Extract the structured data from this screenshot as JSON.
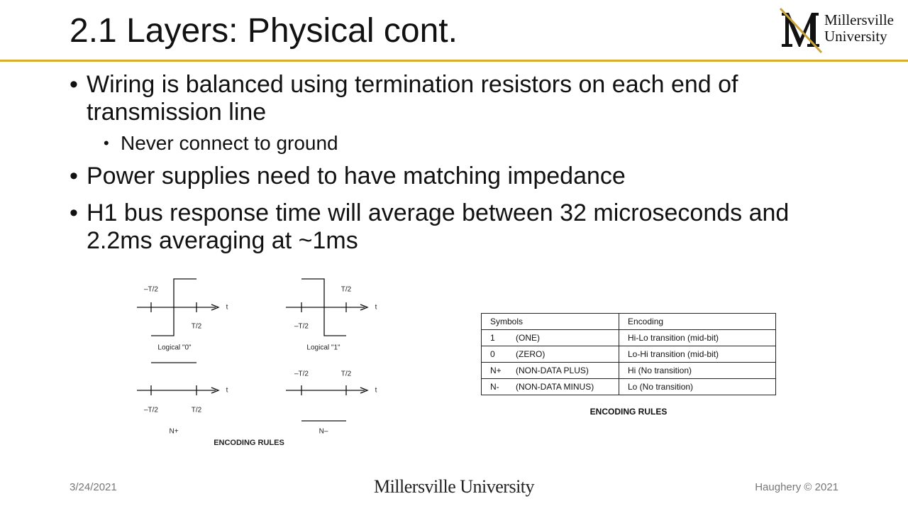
{
  "header": {
    "title": "2.1 Layers: Physical cont.",
    "logo": {
      "line1": "Millersville",
      "line2": "University"
    }
  },
  "bullets": [
    {
      "text": "Wiring is balanced using termination resistors on each end of transmission line",
      "sub": [
        "Never connect to ground"
      ]
    },
    {
      "text": "Power supplies need to have matching impedance"
    },
    {
      "text": "H1 bus response time will average between 32 microseconds and 2.2ms averaging at ~1ms"
    }
  ],
  "diagram": {
    "panels": [
      {
        "caption": "Logical \"0\"",
        "left_label": "–T/2",
        "right_label": "T/2",
        "axis_label": "t"
      },
      {
        "caption": "Logical \"1\"",
        "left_label": "–T/2",
        "right_label": "T/2",
        "axis_label": "t"
      },
      {
        "caption": "N+",
        "left_label": "–T/2",
        "right_label": "T/2",
        "axis_label": "t"
      },
      {
        "caption": "N–",
        "left_label": "–T/2",
        "right_label": "T/2",
        "axis_label": "t"
      }
    ],
    "caption": "ENCODING RULES"
  },
  "table": {
    "header": [
      "Symbols",
      "Encoding"
    ],
    "rows": [
      [
        "1",
        "(ONE)",
        "Hi-Lo transition (mid-bit)"
      ],
      [
        "0",
        "(ZERO)",
        "Lo-Hi transition (mid-bit)"
      ],
      [
        "N+",
        "(NON-DATA PLUS)",
        "Hi (No transition)"
      ],
      [
        "N-",
        "(NON-DATA MINUS)",
        "Lo (No transition)"
      ]
    ],
    "caption": "ENCODING RULES"
  },
  "footer": {
    "date": "3/24/2021",
    "center": "Millersville University",
    "right": "Haughery © 2021"
  }
}
